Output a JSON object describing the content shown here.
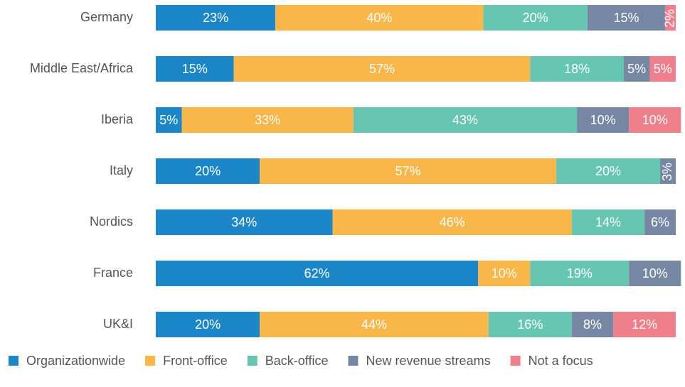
{
  "chart_data": {
    "type": "stacked-barh",
    "categories": [
      "Germany",
      "Middle East/Africa",
      "Iberia",
      "Italy",
      "Nordics",
      "France",
      "UK&I"
    ],
    "xlim": [
      0,
      100
    ],
    "series": [
      {
        "name": "Organizationwide",
        "color": "#1b87c9",
        "values": [
          23,
          15,
          5,
          20,
          34,
          62,
          20
        ],
        "value_labels": [
          "23%",
          "15%",
          "5%",
          "20%",
          "34%",
          "62%",
          "20%"
        ]
      },
      {
        "name": "Front-office",
        "color": "#f9b649",
        "values": [
          40,
          57,
          33,
          57,
          46,
          10,
          44
        ],
        "value_labels": [
          "40%",
          "57%",
          "33%",
          "57%",
          "46%",
          "10%",
          "44%"
        ]
      },
      {
        "name": "Back-office",
        "color": "#66c6b1",
        "values": [
          20,
          18,
          43,
          20,
          14,
          19,
          16
        ],
        "value_labels": [
          "20%",
          "18%",
          "43%",
          "20%",
          "14%",
          "19%",
          "16%"
        ]
      },
      {
        "name": "New revenue streams",
        "color": "#7587a3",
        "values": [
          15,
          5,
          10,
          3,
          6,
          10,
          8
        ],
        "value_labels": [
          "15%",
          "5%",
          "10%",
          "3%",
          "6%",
          "10%",
          "8%"
        ]
      },
      {
        "name": "Not a focus",
        "color": "#f07f8c",
        "values": [
          2,
          5,
          10,
          null,
          null,
          null,
          12
        ],
        "value_labels": [
          "2%",
          "5%",
          "10%",
          null,
          null,
          null,
          "12%"
        ]
      }
    ],
    "legend": "bottom"
  }
}
